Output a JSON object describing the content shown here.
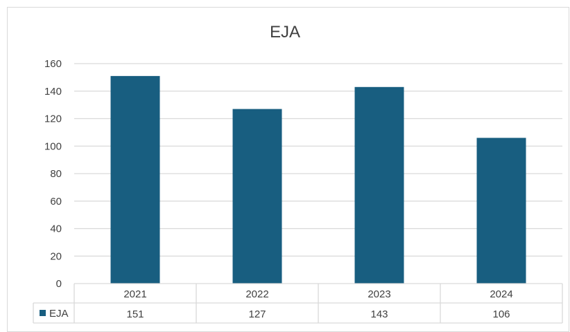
{
  "chart_data": {
    "type": "bar",
    "title": "EJA",
    "categories": [
      "2021",
      "2022",
      "2023",
      "2024"
    ],
    "series": [
      {
        "name": "EJA",
        "values": [
          151,
          127,
          143,
          106
        ],
        "color": "#185e80"
      }
    ],
    "ylim": [
      0,
      160
    ],
    "yticks": [
      "0",
      "20",
      "40",
      "60",
      "80",
      "100",
      "120",
      "140",
      "160"
    ],
    "grid": true,
    "legend": "data-table",
    "data_table": true,
    "colors": {
      "bar": "#185e80",
      "grid": "#d9d9d9",
      "text": "#404040"
    }
  }
}
